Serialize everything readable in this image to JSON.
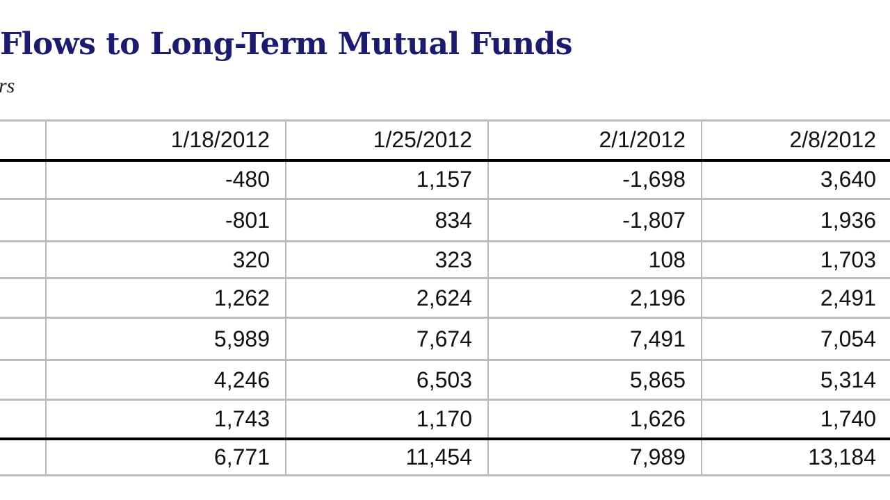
{
  "document": {
    "title": "Flows to Long-Term Mutual Funds",
    "subtitle": "rs"
  },
  "table": {
    "columns": [
      "",
      "1/18/2012",
      "1/25/2012",
      "2/1/2012",
      "2/8/2012"
    ],
    "rows": [
      {
        "label": "",
        "values": [
          "-480",
          "1,157",
          "-1,698",
          "3,640"
        ]
      },
      {
        "label": "",
        "values": [
          "-801",
          "834",
          "-1,807",
          "1,936"
        ]
      },
      {
        "label": "",
        "values": [
          "320",
          "323",
          "108",
          "1,703"
        ]
      },
      {
        "label": "",
        "values": [
          "1,262",
          "2,624",
          "2,196",
          "2,491"
        ]
      },
      {
        "label": "",
        "values": [
          "5,989",
          "7,674",
          "7,491",
          "7,054"
        ]
      },
      {
        "label": "",
        "values": [
          "4,246",
          "6,503",
          "5,865",
          "5,314"
        ]
      },
      {
        "label": "",
        "values": [
          "1,743",
          "1,170",
          "1,626",
          "1,740"
        ]
      }
    ],
    "total": {
      "label": "",
      "values": [
        "6,771",
        "11,454",
        "7,989",
        "13,184"
      ]
    }
  },
  "colors": {
    "title": "#1c1c6e",
    "grid": "#bdbdbd",
    "rule": "#000000"
  }
}
